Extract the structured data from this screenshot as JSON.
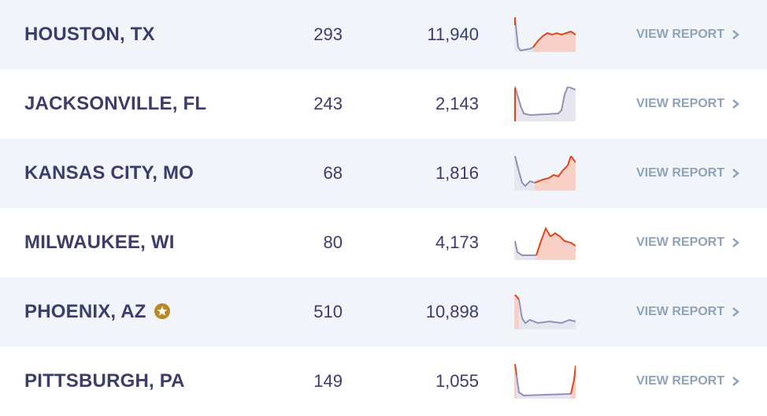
{
  "rows": [
    {
      "city": "HOUSTON, TX",
      "count": "293",
      "total": "11,940",
      "action": "VIEW REPORT"
    },
    {
      "city": "JACKSONVILLE, FL",
      "count": "243",
      "total": "2,143",
      "action": "VIEW REPORT"
    },
    {
      "city": "KANSAS CITY, MO",
      "count": "68",
      "total": "1,816",
      "action": "VIEW REPORT"
    },
    {
      "city": "MILWAUKEE, WI",
      "count": "80",
      "total": "4,173",
      "action": "VIEW REPORT"
    },
    {
      "city": "PHOENIX, AZ",
      "count": "510",
      "total": "10,898",
      "action": "VIEW REPORT"
    },
    {
      "city": "PITTSBURGH, PA",
      "count": "149",
      "total": "1,055",
      "action": "VIEW REPORT"
    }
  ]
}
